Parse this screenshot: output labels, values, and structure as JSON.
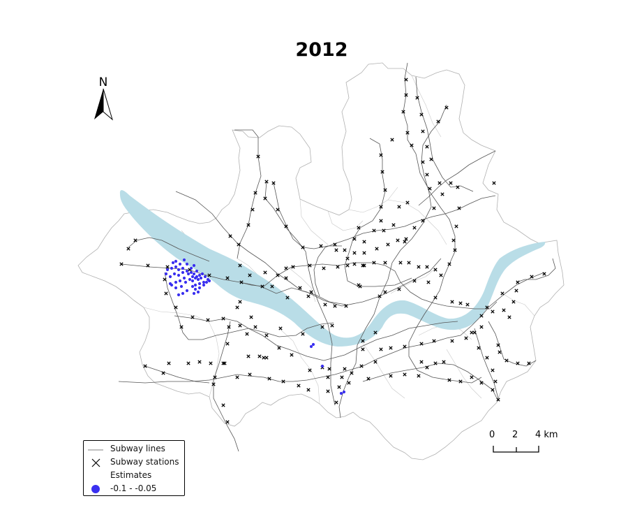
{
  "title": "2012",
  "north_arrow": {
    "label": "N"
  },
  "legend": {
    "lines_label": "Subway lines",
    "stations_label": "Subway stations",
    "estimates_heading": "Estimates",
    "estimates_range": "-0.1 - -0.05"
  },
  "scale_bar": {
    "tick0": "0",
    "tick1": "2",
    "tick2": "4",
    "unit_tick": "4 km"
  },
  "colors": {
    "river": "#b9dde7",
    "estimate": "#3a30f0",
    "boundary": "#b0b0b0",
    "subway": "#555555",
    "station": "#000000"
  },
  "estimates_points_count": 60
}
